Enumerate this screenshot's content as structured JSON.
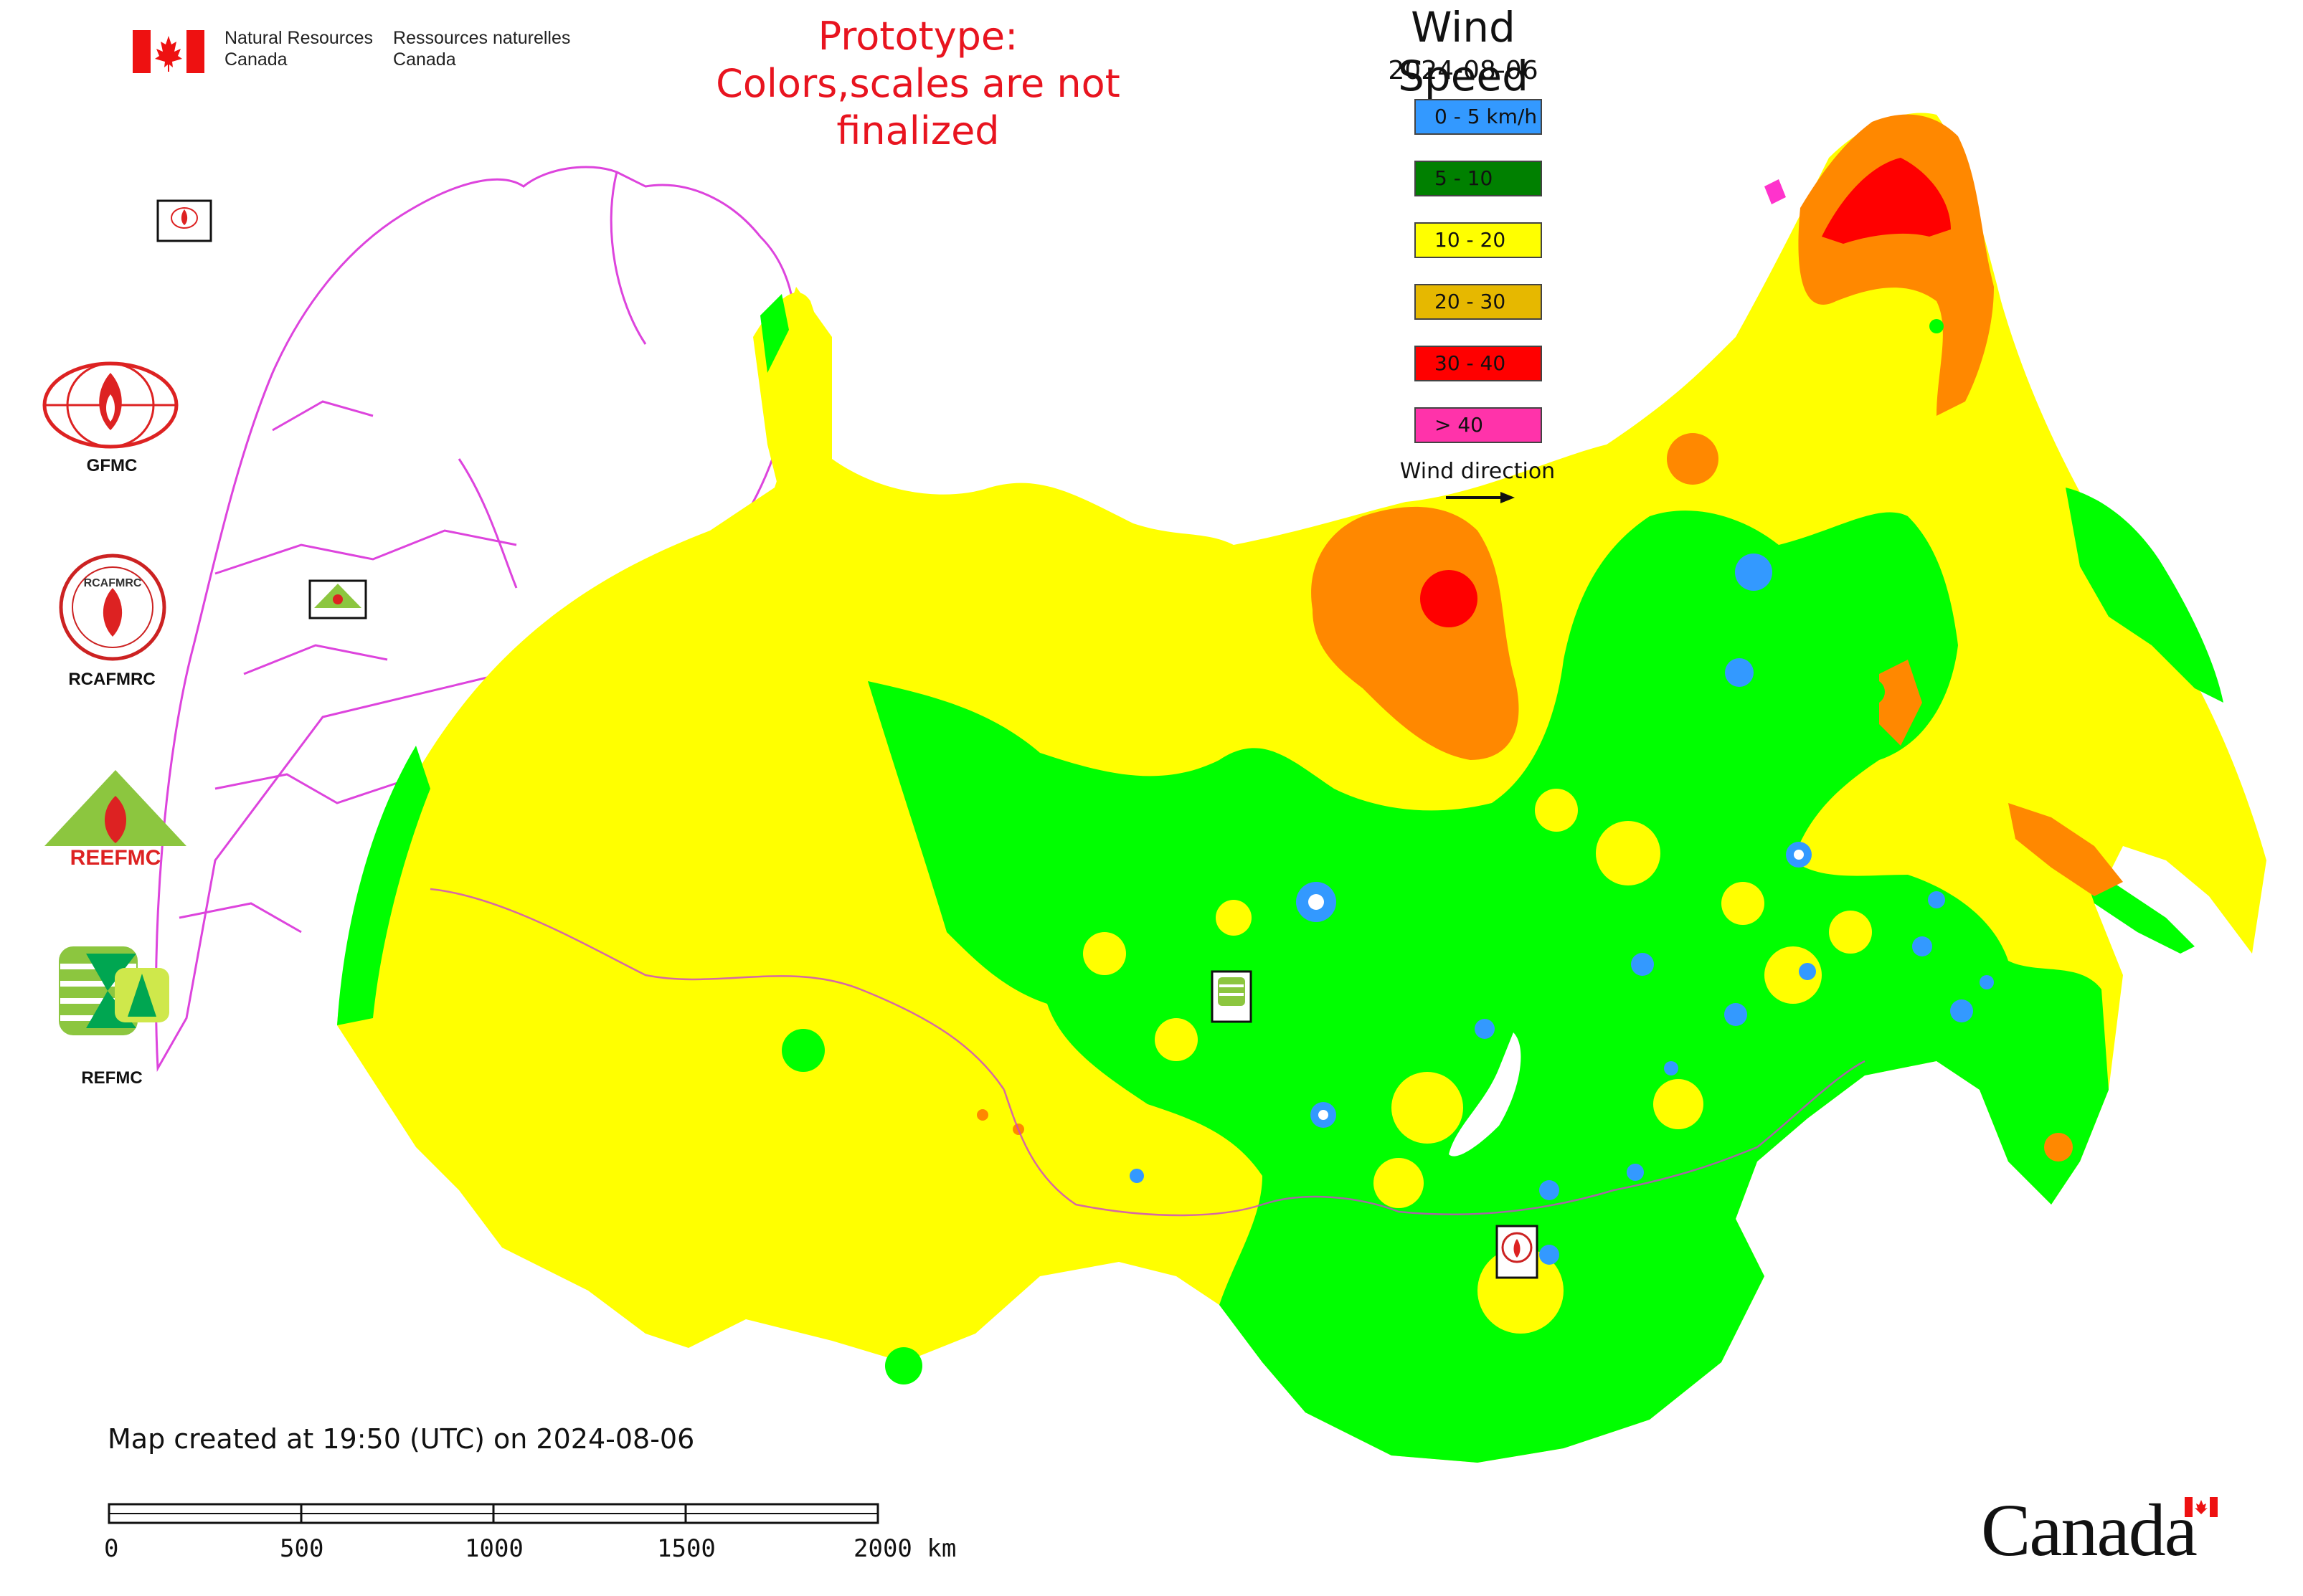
{
  "header": {
    "agency_en": "Natural Resources\nCanada",
    "agency_fr": "Ressources naturelles\nCanada",
    "prototype_line1": "Prototype:",
    "prototype_line2": "Colors,scales are not finalized"
  },
  "legend": {
    "title": "Wind Speed",
    "date": "2024-08-06",
    "items": [
      {
        "label": "0 - 5 km/h",
        "color": "#3399ff"
      },
      {
        "label": "5 - 10",
        "color": "#008000"
      },
      {
        "label": "10 - 20",
        "color": "#ffff00"
      },
      {
        "label": "20 - 30",
        "color": "#e6b800"
      },
      {
        "label": "30 - 40",
        "color": "#ff0000"
      },
      {
        "label": "> 40",
        "color": "#ff33aa"
      }
    ],
    "wind_direction_label": "Wind direction"
  },
  "organizations": [
    {
      "label": "GFMC",
      "icon": "gfmc-logo-icon"
    },
    {
      "label": "RCAFMRC",
      "icon": "rcafmrc-logo-icon"
    },
    {
      "label": "",
      "icon": "reefmc-logo-icon",
      "logo_text": "REEFMC"
    },
    {
      "label": "REFMC",
      "icon": "refmc-logo-icon"
    }
  ],
  "map": {
    "fill_colors": {
      "slow": "#3399ff",
      "light": "#00ff00",
      "moderate": "#ffff00",
      "fresh": "#ff8800",
      "strong": "#ff0000",
      "extreme": "#ff33cc",
      "borders": "#dd44dd"
    },
    "marker_labels": [
      "GFMC",
      "REEFMC",
      "REFMC",
      "RCAFMRC"
    ]
  },
  "footer": {
    "created_text": "Map created at 19:50 (UTC) on 2024-08-06",
    "scale_labels": [
      "0",
      "500",
      "1000",
      "1500",
      "2000 km"
    ],
    "wordmark": "Canada"
  }
}
